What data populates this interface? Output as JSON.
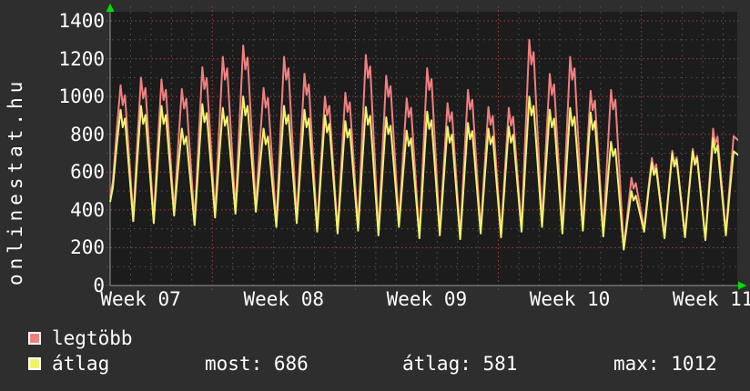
{
  "branding": {
    "site": "onlinestat.hu"
  },
  "legend": {
    "items": [
      {
        "label": "legtöbb",
        "color": "#f08080"
      },
      {
        "label": "átlag",
        "color": "#f2f26e"
      }
    ]
  },
  "stats": {
    "most": "most: 686",
    "atlag": "átlag: 581",
    "max": "max: 1012"
  },
  "chart_data": {
    "type": "line",
    "title": "",
    "xlabel": "",
    "ylabel": "",
    "x_tick_labels": [
      "Week 07",
      "Week 08",
      "Week 09",
      "Week 10",
      "Week 11"
    ],
    "y_ticks": [
      0,
      200,
      400,
      600,
      800,
      1000,
      1200,
      1400
    ],
    "ylim": [
      0,
      1450
    ],
    "days_shown": 31,
    "legend_position": "bottom-left",
    "grid": {
      "major_color": "#a84040",
      "minor_color": "#555555",
      "plot_bg": "#1c1c1c",
      "outer_bg": "#2e2e2e",
      "axis_color": "#999999",
      "arrow_color": "#00dd00"
    },
    "series": [
      {
        "name": "legtöbb",
        "color": "#f08080",
        "daily_peaks": [
          1060,
          1100,
          1090,
          1040,
          1155,
          1210,
          1270,
          1045,
          1210,
          1120,
          1000,
          1020,
          1220,
          1110,
          990,
          1150,
          965,
          1035,
          945,
          940,
          1300,
          1120,
          1210,
          1030,
          1035,
          570,
          675,
          713,
          723,
          830,
          790
        ],
        "daily_troughs": [
          550,
          360,
          350,
          390,
          340,
          380,
          400,
          420,
          330,
          350,
          300,
          290,
          310,
          280,
          330,
          260,
          280,
          260,
          290,
          270,
          300,
          330,
          290,
          310,
          280,
          200,
          300,
          260,
          270,
          250,
          280
        ]
      },
      {
        "name": "átlag",
        "color": "#f2f26e",
        "daily_peaks": [
          930,
          950,
          950,
          830,
          960,
          940,
          1000,
          830,
          950,
          930,
          900,
          870,
          945,
          890,
          820,
          920,
          840,
          860,
          830,
          840,
          1000,
          930,
          940,
          915,
          760,
          500,
          650,
          700,
          710,
          780,
          710
        ],
        "daily_troughs": [
          520,
          340,
          330,
          370,
          320,
          360,
          380,
          390,
          310,
          330,
          285,
          275,
          290,
          265,
          310,
          250,
          265,
          245,
          275,
          255,
          285,
          310,
          275,
          290,
          260,
          190,
          285,
          250,
          255,
          240,
          265
        ]
      }
    ]
  }
}
